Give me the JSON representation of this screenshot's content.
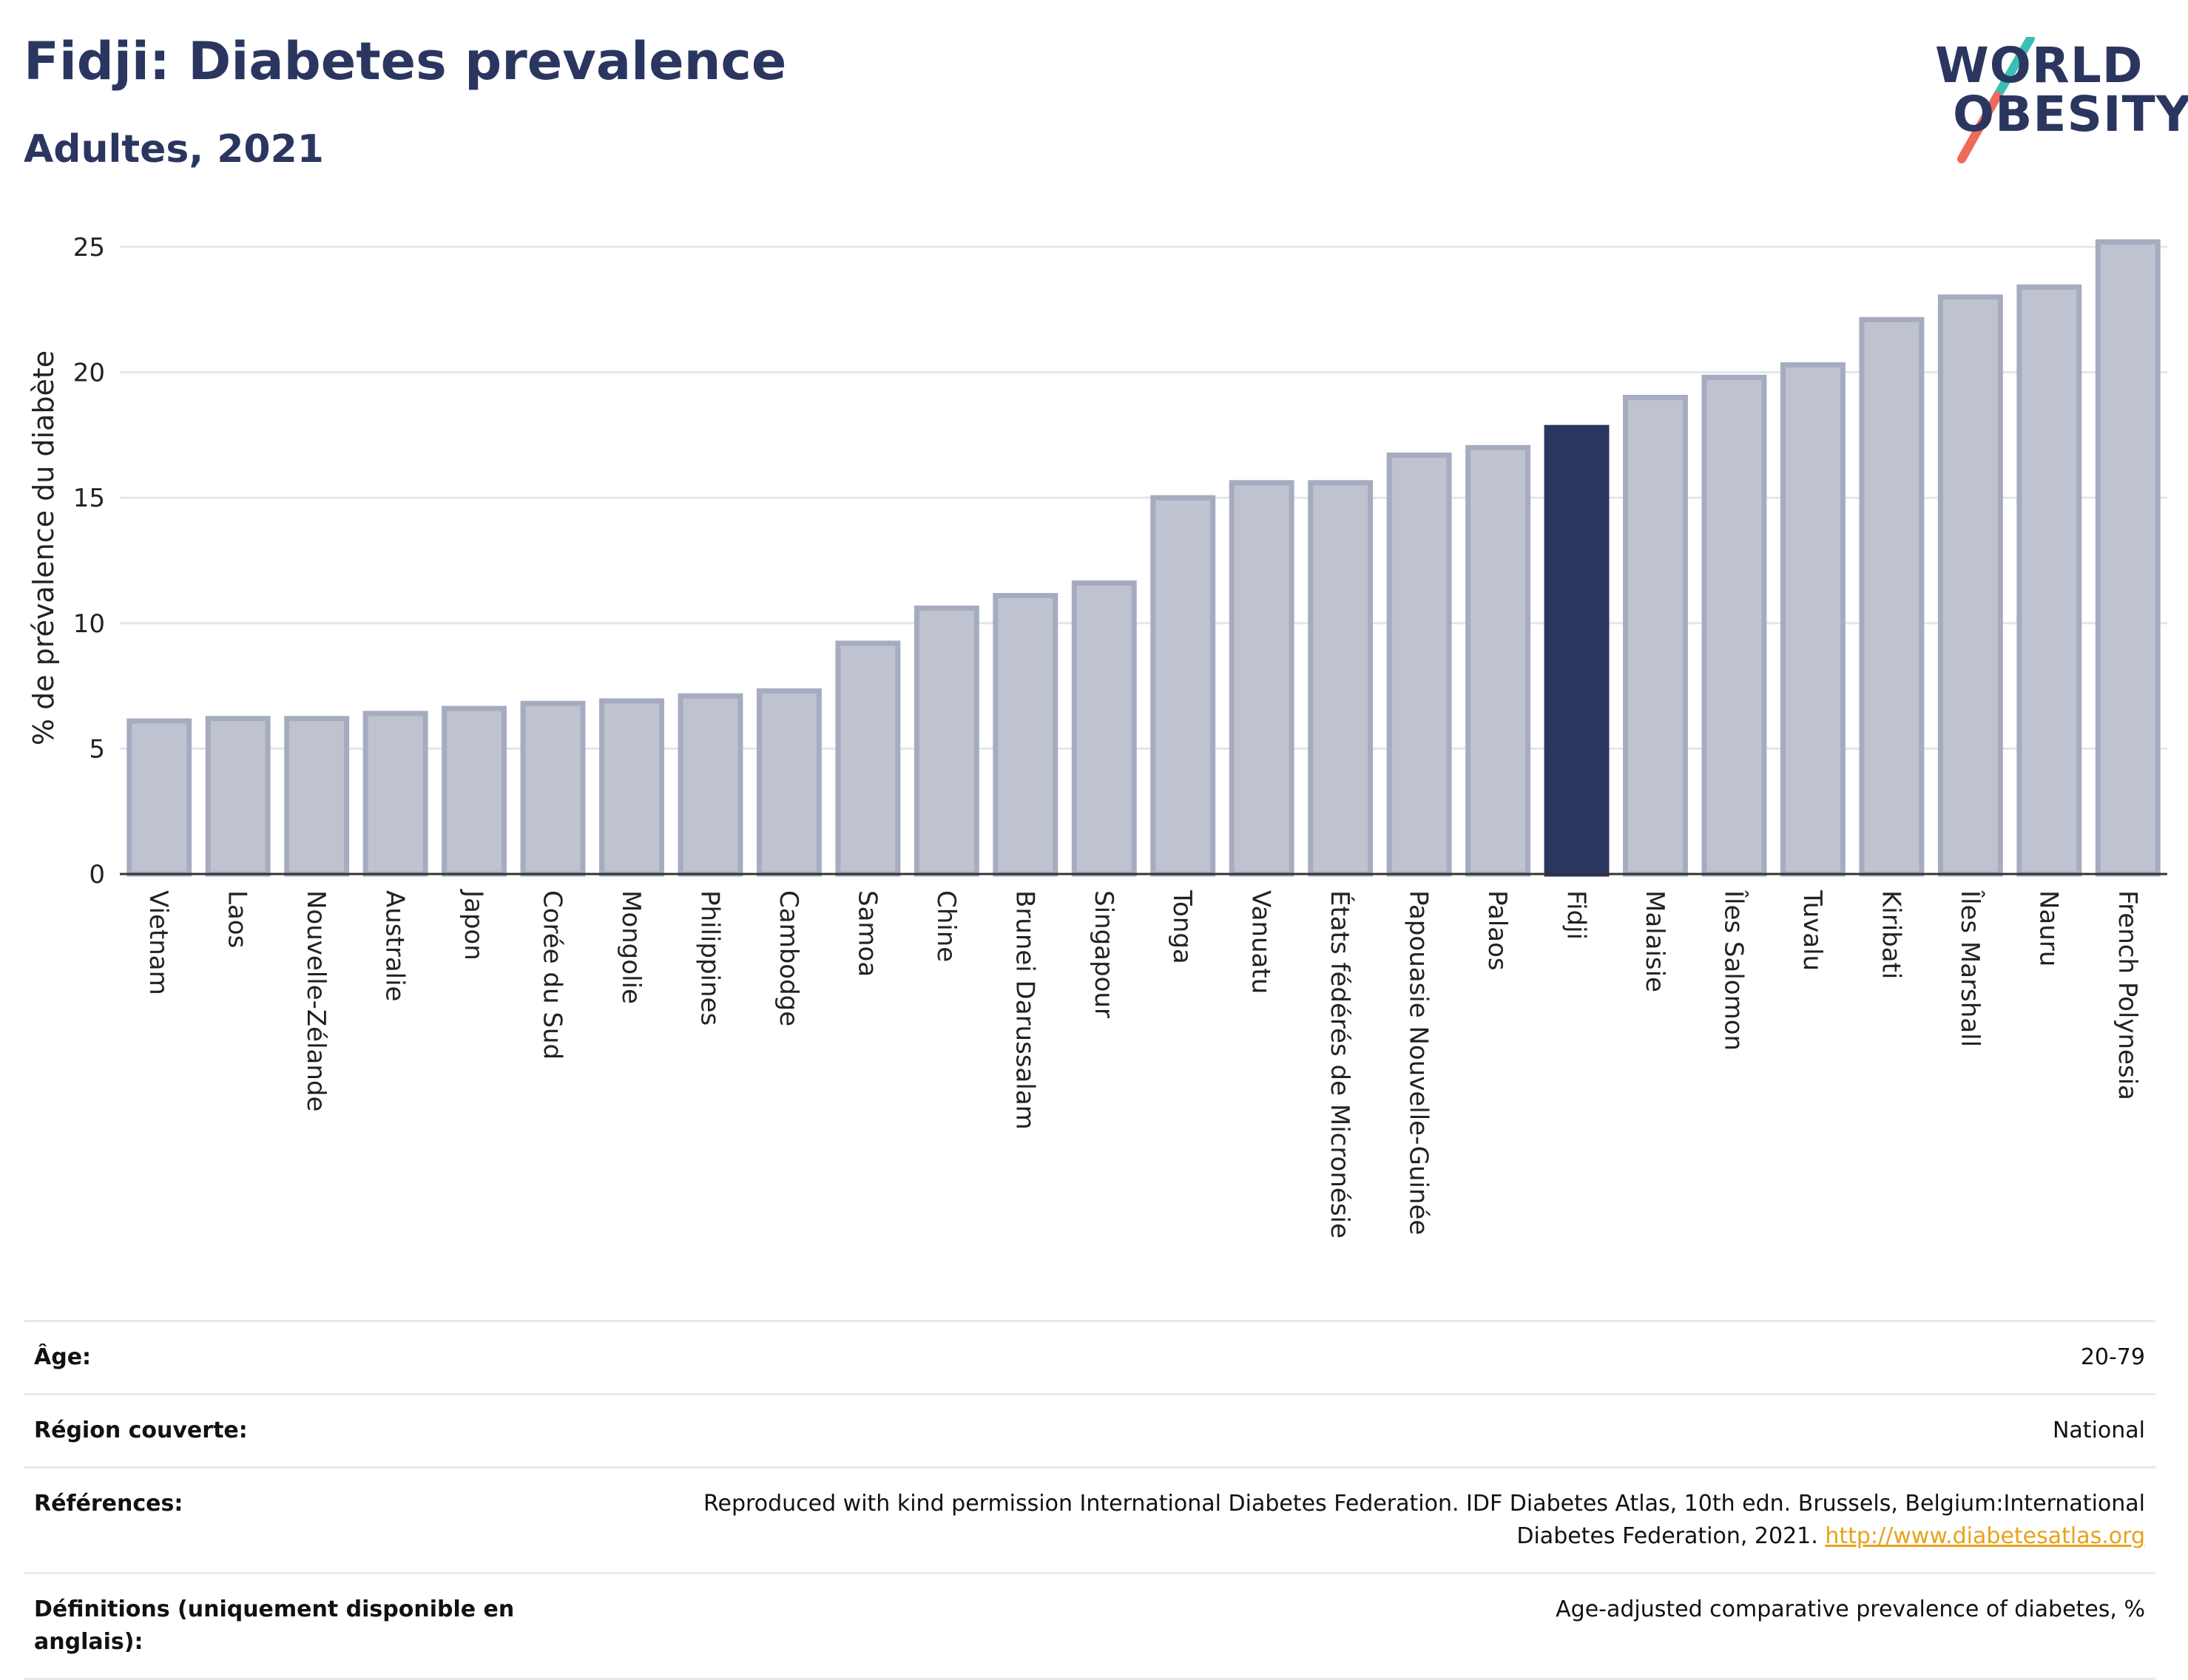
{
  "header": {
    "title": "Fidji: Diabetes prevalence",
    "subtitle": "Adultes, 2021"
  },
  "logo": {
    "line1": "WORLD",
    "line2": "OBESITY",
    "colors": {
      "text": "#2b3660",
      "slash_top": "#3bbfb4",
      "slash_bottom": "#ee6a5a"
    }
  },
  "chart_data": {
    "type": "bar",
    "ylabel": "% de prévalence du diabète",
    "xlabel": "",
    "ylim": [
      0,
      26
    ],
    "yticks": [
      0,
      5,
      10,
      15,
      20,
      25
    ],
    "grid": true,
    "highlight": "Fidji",
    "colors": {
      "bar": "#bfc3cf",
      "bar_border": "#a6acc0",
      "highlight": "#2b3660",
      "grid": "#e3e6ec"
    },
    "categories": [
      "Vietnam",
      "Laos",
      "Nouvelle-Zélande",
      "Australie",
      "Japon",
      "Corée du Sud",
      "Mongolie",
      "Philippines",
      "Cambodge",
      "Samoa",
      "Chine",
      "Brunei Darussalam",
      "Singapour",
      "Tonga",
      "Vanuatu",
      "États fédérés de Micronésie",
      "Papouasie Nouvelle-Guinée",
      "Palaos",
      "Fidji",
      "Malaisie",
      "Îles Salomon",
      "Tuvalu",
      "Kiribati",
      "Îles Marshall",
      "Nauru",
      "French Polynesia"
    ],
    "values": [
      6.1,
      6.2,
      6.2,
      6.4,
      6.6,
      6.8,
      6.9,
      7.1,
      7.3,
      9.2,
      10.6,
      11.1,
      11.6,
      15.0,
      15.6,
      15.6,
      16.7,
      17.0,
      17.8,
      19.0,
      19.8,
      20.3,
      22.1,
      23.0,
      23.4,
      25.2
    ]
  },
  "meta": [
    {
      "key": "Âge:",
      "value": "20-79"
    },
    {
      "key": "Région couverte:",
      "value": "National"
    },
    {
      "key": "Références:",
      "value": "Reproduced with kind permission International Diabetes Federation.  IDF Diabetes Atlas, 10th edn. Brussels, Belgium:International Diabetes Federation, 2021.",
      "link": "http://www.diabetesatlas.org"
    },
    {
      "key": "Définitions (uniquement disponible en anglais):",
      "value": "Age-adjusted comparative prevalence of diabetes, %"
    }
  ]
}
